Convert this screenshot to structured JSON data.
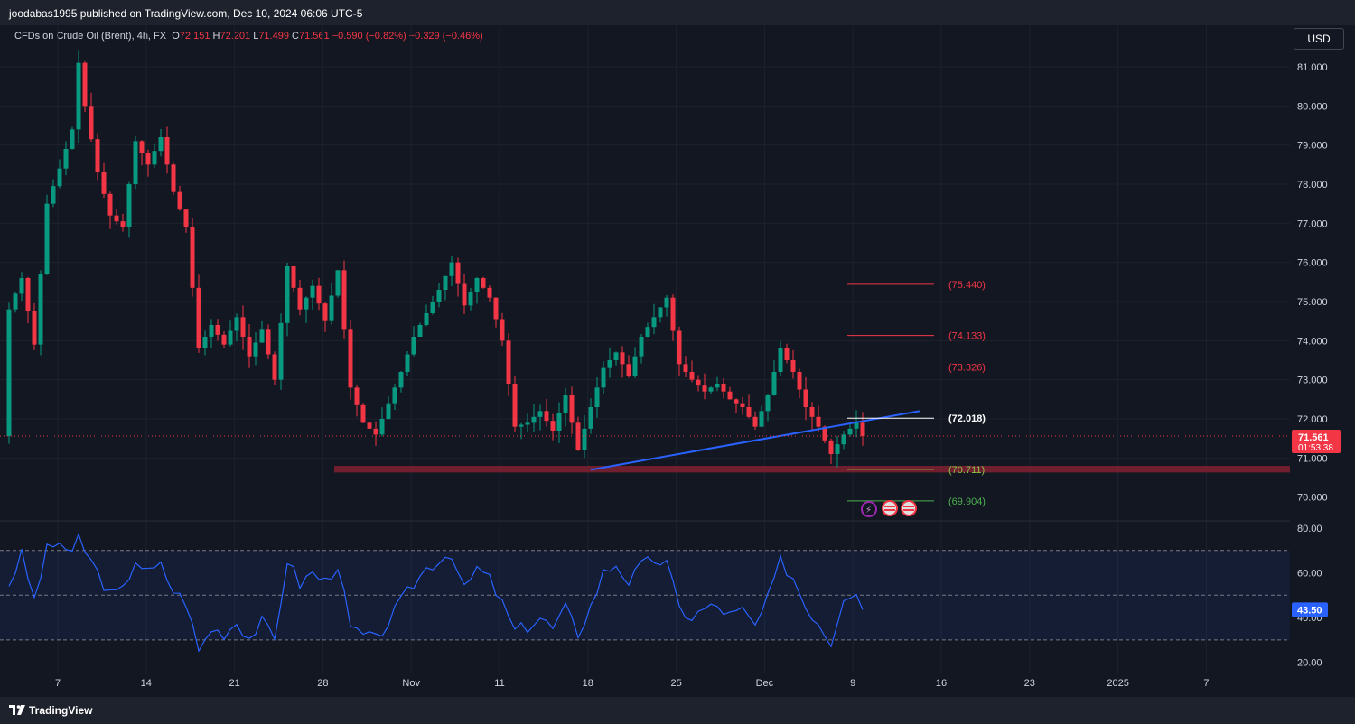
{
  "header": {
    "publisher": "joodabas1995 published on TradingView.com, Dec 10, 2024 06:06 UTC-5"
  },
  "legend": {
    "symbol": "CFDs on Crude Oil (Brent), 4h, FX",
    "o_label": "O",
    "o_value": "72.151",
    "h_label": "H",
    "h_value": "72.201",
    "l_label": "L",
    "l_value": "71.499",
    "c_label": "C",
    "c_value": "71.561",
    "change": "−0.590 (−0.82%)",
    "change2": "−0.329 (−0.46%)"
  },
  "currency": "USD",
  "footer": {
    "brand": "TradingView"
  },
  "colors": {
    "up": "#089981",
    "down": "#f23645",
    "rsi": "#2962ff",
    "trend": "#2962ff",
    "zone": "#7a2030"
  },
  "chart_data": {
    "type": "candlestick",
    "timeframe": "4h",
    "y_ticks": [
      "81.000",
      "80.000",
      "79.000",
      "78.000",
      "77.000",
      "76.000",
      "75.000",
      "74.000",
      "73.000",
      "72.000",
      "71.000",
      "70.000"
    ],
    "ylim": [
      69.6,
      81.6
    ],
    "x_ticks": [
      "7",
      "14",
      "21",
      "28",
      "Nov",
      "11",
      "18",
      "25",
      "Dec",
      "9",
      "16",
      "23",
      "2025",
      "7"
    ],
    "price_points": [
      [
        0,
        74.8
      ],
      [
        2,
        75.6
      ],
      [
        4,
        73.9
      ],
      [
        6,
        77.5
      ],
      [
        8,
        78.4
      ],
      [
        10,
        79.4
      ],
      [
        11,
        81.1
      ],
      [
        12,
        80.0
      ],
      [
        14,
        78.3
      ],
      [
        16,
        77.2
      ],
      [
        18,
        76.9
      ],
      [
        20,
        79.1
      ],
      [
        22,
        78.5
      ],
      [
        24,
        79.2
      ],
      [
        26,
        77.8
      ],
      [
        28,
        76.9
      ],
      [
        30,
        73.8
      ],
      [
        32,
        74.4
      ],
      [
        34,
        73.9
      ],
      [
        36,
        74.6
      ],
      [
        38,
        73.6
      ],
      [
        40,
        74.3
      ],
      [
        42,
        73.0
      ],
      [
        44,
        75.9
      ],
      [
        46,
        74.8
      ],
      [
        48,
        75.4
      ],
      [
        50,
        74.5
      ],
      [
        52,
        75.8
      ],
      [
        54,
        72.8
      ],
      [
        56,
        71.9
      ],
      [
        58,
        71.6
      ],
      [
        60,
        72.4
      ],
      [
        62,
        73.2
      ],
      [
        64,
        74.1
      ],
      [
        66,
        74.7
      ],
      [
        68,
        75.3
      ],
      [
        70,
        76.0
      ],
      [
        72,
        74.9
      ],
      [
        74,
        75.6
      ],
      [
        76,
        75.1
      ],
      [
        78,
        74.0
      ],
      [
        80,
        71.8
      ],
      [
        82,
        71.9
      ],
      [
        84,
        72.2
      ],
      [
        86,
        71.7
      ],
      [
        88,
        72.6
      ],
      [
        90,
        71.2
      ],
      [
        92,
        72.3
      ],
      [
        94,
        73.3
      ],
      [
        96,
        73.7
      ],
      [
        98,
        73.1
      ],
      [
        100,
        74.1
      ],
      [
        102,
        74.6
      ],
      [
        104,
        75.1
      ],
      [
        106,
        73.4
      ],
      [
        108,
        73.0
      ],
      [
        110,
        72.7
      ],
      [
        112,
        72.9
      ],
      [
        114,
        72.5
      ],
      [
        116,
        72.3
      ],
      [
        118,
        71.8
      ],
      [
        120,
        72.6
      ],
      [
        122,
        73.8
      ],
      [
        124,
        73.2
      ],
      [
        126,
        72.3
      ],
      [
        128,
        71.8
      ],
      [
        130,
        71.1
      ],
      [
        132,
        71.6
      ],
      [
        134,
        71.9
      ],
      [
        135,
        71.56
      ]
    ],
    "rsi": {
      "value_label": "43.50",
      "y_ticks": [
        "80.00",
        "60.00",
        "40.00",
        "20.00"
      ],
      "ylim": [
        15,
        82
      ],
      "levels": [
        70,
        50,
        30
      ],
      "points": [
        [
          0,
          55
        ],
        [
          2,
          68
        ],
        [
          4,
          48
        ],
        [
          6,
          70
        ],
        [
          8,
          74
        ],
        [
          10,
          67
        ],
        [
          11,
          76
        ],
        [
          12,
          70
        ],
        [
          14,
          60
        ],
        [
          16,
          50
        ],
        [
          18,
          52
        ],
        [
          20,
          66
        ],
        [
          22,
          60
        ],
        [
          24,
          63
        ],
        [
          26,
          52
        ],
        [
          28,
          47
        ],
        [
          30,
          25
        ],
        [
          32,
          35
        ],
        [
          34,
          33
        ],
        [
          36,
          38
        ],
        [
          38,
          31
        ],
        [
          40,
          38
        ],
        [
          42,
          30
        ],
        [
          44,
          66
        ],
        [
          46,
          55
        ],
        [
          48,
          60
        ],
        [
          50,
          56
        ],
        [
          52,
          64
        ],
        [
          54,
          35
        ],
        [
          56,
          32
        ],
        [
          58,
          30
        ],
        [
          60,
          38
        ],
        [
          62,
          47
        ],
        [
          64,
          55
        ],
        [
          66,
          62
        ],
        [
          68,
          66
        ],
        [
          70,
          69
        ],
        [
          72,
          52
        ],
        [
          74,
          62
        ],
        [
          76,
          57
        ],
        [
          78,
          46
        ],
        [
          80,
          34
        ],
        [
          82,
          36
        ],
        [
          84,
          40
        ],
        [
          86,
          35
        ],
        [
          88,
          44
        ],
        [
          90,
          33
        ],
        [
          92,
          45
        ],
        [
          94,
          60
        ],
        [
          96,
          64
        ],
        [
          98,
          56
        ],
        [
          100,
          63
        ],
        [
          102,
          66
        ],
        [
          104,
          64
        ],
        [
          106,
          44
        ],
        [
          108,
          40
        ],
        [
          110,
          44
        ],
        [
          112,
          45
        ],
        [
          114,
          41
        ],
        [
          116,
          43
        ],
        [
          118,
          36
        ],
        [
          120,
          48
        ],
        [
          122,
          65
        ],
        [
          124,
          58
        ],
        [
          126,
          45
        ],
        [
          128,
          38
        ],
        [
          130,
          29
        ],
        [
          132,
          50
        ],
        [
          134,
          52
        ],
        [
          135,
          43.5
        ]
      ]
    },
    "levels": [
      {
        "label": "(75.440)",
        "value": 75.44,
        "color": "#f23645"
      },
      {
        "label": "(74.133)",
        "value": 74.133,
        "color": "#f23645"
      },
      {
        "label": "(73.326)",
        "value": 73.326,
        "color": "#f23645"
      },
      {
        "label": "(72.018)",
        "value": 72.018,
        "color": "#ffffff"
      },
      {
        "label": "(70.711)",
        "value": 70.711,
        "color": "#8bc34a"
      },
      {
        "label": "(69.904)",
        "value": 69.904,
        "color": "#4caf50"
      }
    ],
    "support_zone": [
      70.63,
      70.8
    ],
    "trendline": [
      [
        92,
        70.7
      ],
      [
        144,
        72.2
      ]
    ],
    "last_price": {
      "value": 71.561,
      "label": "71.561",
      "countdown": "01:53:38"
    }
  }
}
